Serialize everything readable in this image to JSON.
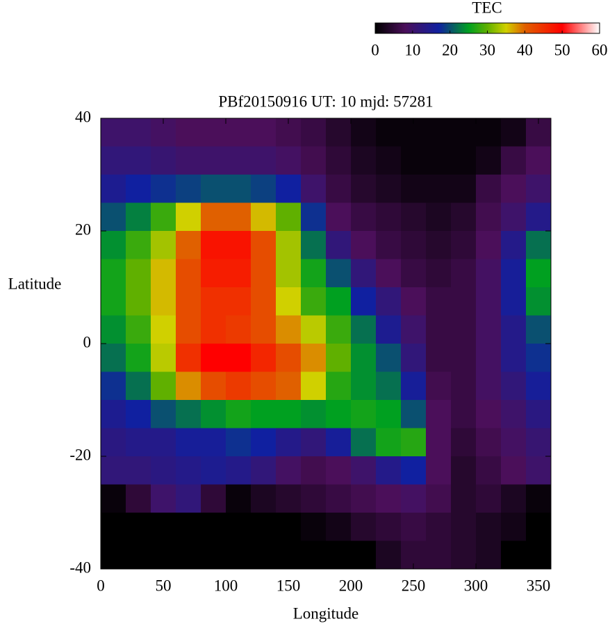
{
  "chart_data": {
    "type": "heatmap",
    "title": "PBf20150916  UT: 10  mjd: 57281",
    "xlabel": "Longitude",
    "ylabel": "Latitude",
    "xlim": [
      0,
      360
    ],
    "ylim": [
      -40,
      40
    ],
    "xticks": [
      0,
      50,
      100,
      150,
      200,
      250,
      300,
      350
    ],
    "yticks": [
      -40,
      -20,
      0,
      20,
      40
    ],
    "x": [
      10,
      30,
      50,
      70,
      90,
      110,
      130,
      150,
      170,
      190,
      210,
      230,
      250,
      270,
      290,
      310,
      330,
      350
    ],
    "y": [
      37.5,
      32.5,
      27.5,
      22.5,
      17.5,
      12.5,
      7.5,
      2.5,
      -2.5,
      -7.5,
      -12.5,
      -17.5,
      -22.5,
      -27.5,
      -32.5,
      -37.5
    ],
    "z": [
      [
        10,
        10,
        9,
        8,
        8,
        8,
        8,
        7,
        6,
        4,
        2,
        1,
        1,
        1,
        1,
        1,
        2,
        6
      ],
      [
        12,
        12,
        11,
        10,
        10,
        10,
        10,
        9,
        7,
        5,
        3,
        2,
        1,
        1,
        1,
        2,
        6,
        8
      ],
      [
        15,
        17,
        18,
        19,
        20,
        20,
        19,
        17,
        10,
        6,
        4,
        3,
        2,
        2,
        2,
        6,
        8,
        10
      ],
      [
        20,
        23,
        28,
        35,
        40,
        40,
        36,
        30,
        18,
        8,
        6,
        5,
        4,
        3,
        4,
        7,
        10,
        14
      ],
      [
        24,
        28,
        33,
        40,
        48,
        48,
        42,
        33,
        22,
        12,
        8,
        6,
        5,
        4,
        5,
        8,
        14,
        22
      ],
      [
        26,
        30,
        36,
        42,
        47,
        47,
        42,
        33,
        26,
        20,
        12,
        8,
        6,
        5,
        6,
        9,
        16,
        25
      ],
      [
        26,
        30,
        36,
        42,
        45,
        45,
        42,
        35,
        28,
        25,
        17,
        12,
        8,
        6,
        6,
        9,
        16,
        24
      ],
      [
        24,
        28,
        35,
        42,
        45,
        44,
        42,
        38,
        34,
        28,
        22,
        15,
        10,
        6,
        6,
        9,
        14,
        20
      ],
      [
        22,
        26,
        34,
        45,
        50,
        50,
        46,
        42,
        38,
        30,
        24,
        20,
        12,
        6,
        6,
        9,
        14,
        18
      ],
      [
        18,
        22,
        30,
        38,
        42,
        44,
        42,
        40,
        35,
        27,
        24,
        22,
        16,
        7,
        6,
        9,
        12,
        16
      ],
      [
        15,
        17,
        20,
        22,
        24,
        26,
        25,
        25,
        24,
        25,
        26,
        25,
        20,
        8,
        6,
        8,
        10,
        13
      ],
      [
        13,
        14,
        14,
        16,
        16,
        18,
        17,
        14,
        12,
        16,
        22,
        26,
        27,
        8,
        5,
        7,
        9,
        11
      ],
      [
        12,
        12,
        13,
        14,
        15,
        14,
        12,
        9,
        7,
        8,
        10,
        14,
        17,
        8,
        4,
        6,
        8,
        10
      ],
      [
        1,
        5,
        10,
        12,
        5,
        1,
        3,
        4,
        5,
        6,
        7,
        8,
        9,
        7,
        4,
        5,
        3,
        1
      ],
      [
        0,
        0,
        0,
        0,
        0,
        0,
        0,
        0,
        1,
        2,
        4,
        5,
        6,
        5,
        4,
        3,
        2,
        0
      ],
      [
        0,
        0,
        0,
        0,
        0,
        0,
        0,
        0,
        0,
        0,
        0,
        3,
        5,
        5,
        4,
        3,
        0,
        0
      ]
    ],
    "colorbar": {
      "label": "TEC",
      "lim": [
        0,
        60
      ],
      "ticks": [
        0,
        10,
        20,
        30,
        40,
        50,
        60
      ]
    },
    "colormap": [
      {
        "value": 0,
        "color": "#000000"
      },
      {
        "value": 8,
        "color": "#4b0f5a"
      },
      {
        "value": 17,
        "color": "#1020a0"
      },
      {
        "value": 25,
        "color": "#00a020"
      },
      {
        "value": 30,
        "color": "#60b000"
      },
      {
        "value": 35,
        "color": "#d0d000"
      },
      {
        "value": 40,
        "color": "#e06000"
      },
      {
        "value": 50,
        "color": "#ff0000"
      },
      {
        "value": 60,
        "color": "#ffffff"
      }
    ]
  }
}
